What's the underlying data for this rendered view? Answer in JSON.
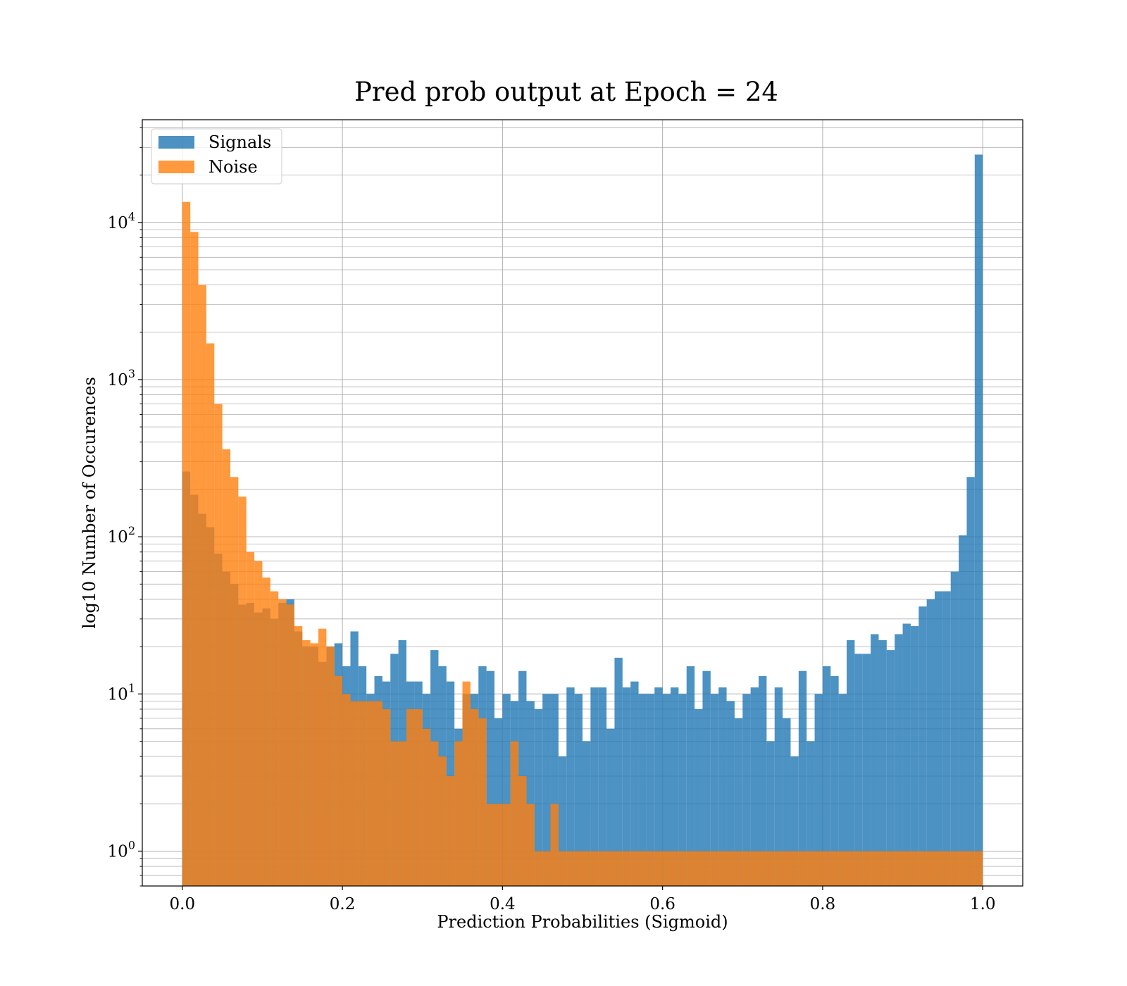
{
  "chart_data": {
    "type": "histogram",
    "title": "Pred prob output at Epoch = 24",
    "xlabel": "Prediction Probabilities (Sigmoid)",
    "ylabel": "log10 Number of Occurences",
    "xlim": [
      -0.05,
      1.05
    ],
    "ylim": [
      0.6,
      45000
    ],
    "yscale": "log",
    "grid": true,
    "legend_position": "upper-left",
    "x_ticks": [
      {
        "value": 0.0,
        "label": "0.0"
      },
      {
        "value": 0.2,
        "label": "0.2"
      },
      {
        "value": 0.4,
        "label": "0.4"
      },
      {
        "value": 0.6,
        "label": "0.6"
      },
      {
        "value": 0.8,
        "label": "0.8"
      },
      {
        "value": 1.0,
        "label": "1.0"
      }
    ],
    "y_ticks": [
      {
        "value": 1,
        "exponent": "0"
      },
      {
        "value": 10,
        "exponent": "1"
      },
      {
        "value": 100,
        "exponent": "2"
      },
      {
        "value": 1000,
        "exponent": "3"
      },
      {
        "value": 10000,
        "exponent": "4"
      }
    ],
    "y_tick_base": "10",
    "bin_edges_range": [
      0.0,
      1.0
    ],
    "bin_count": 100,
    "series": [
      {
        "name": "Signals",
        "color": "#1f77b4",
        "alpha": 0.8,
        "values": [
          260,
          185,
          140,
          115,
          78,
          60,
          50,
          37,
          38,
          33,
          35,
          30,
          38,
          40,
          25,
          20,
          20,
          16,
          20,
          21,
          15,
          25,
          15,
          10,
          13,
          12,
          18,
          22,
          12,
          12,
          10,
          19,
          15,
          12,
          6,
          10,
          10,
          15,
          14,
          7,
          10,
          9,
          14,
          9,
          8,
          10,
          10,
          4,
          11,
          10,
          5,
          11,
          11,
          6,
          17,
          11,
          12,
          10,
          10,
          11,
          10,
          11,
          10,
          15,
          8,
          14,
          10,
          11,
          9,
          7,
          10,
          11,
          13,
          5,
          11,
          7,
          4,
          14,
          5,
          10,
          15,
          13,
          10,
          22,
          18,
          18,
          24,
          22,
          19,
          24,
          28,
          27,
          36,
          40,
          45,
          45,
          60,
          102,
          240,
          27000
        ]
      },
      {
        "name": "Noise",
        "color": "#ff7f0e",
        "alpha": 0.8,
        "values": [
          13500,
          8700,
          4000,
          1700,
          700,
          360,
          240,
          180,
          80,
          70,
          55,
          45,
          40,
          37,
          27,
          22,
          21,
          26,
          20,
          13,
          10,
          9,
          9,
          9,
          9,
          8,
          5,
          5,
          8,
          8,
          6,
          5,
          4,
          3,
          5,
          12,
          8,
          7,
          2,
          2,
          2,
          5,
          3,
          2,
          1,
          1,
          2,
          1,
          1,
          1,
          1,
          1,
          1,
          1,
          1,
          1,
          1,
          1,
          1,
          1,
          1,
          1,
          1,
          1,
          1,
          1,
          1,
          1,
          1,
          1,
          1,
          1,
          1,
          1,
          1,
          1,
          1,
          1,
          1,
          1,
          1,
          1,
          1,
          1,
          1,
          1,
          1,
          1,
          1,
          1,
          1,
          1,
          1,
          1,
          1,
          1,
          1,
          1,
          1,
          1
        ]
      }
    ]
  }
}
